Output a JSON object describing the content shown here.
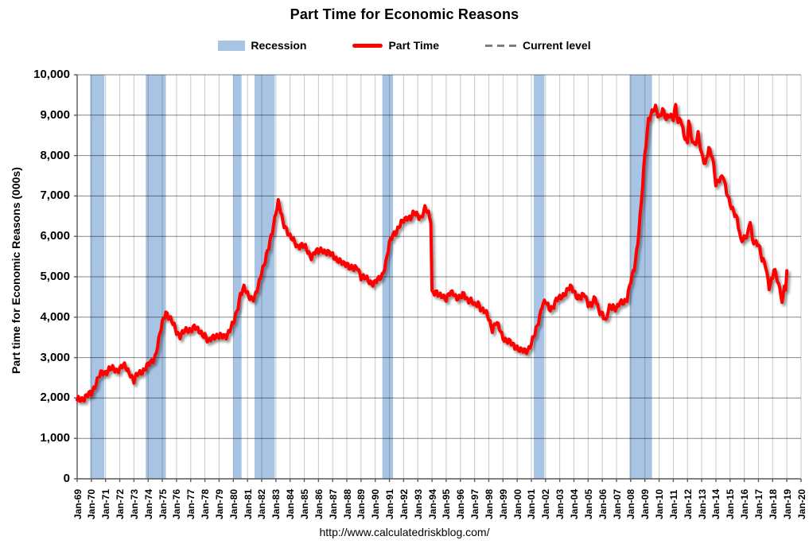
{
  "title": "Part Time for Economic Reasons",
  "footer_url": "http://www.calculatedriskblog.com/",
  "legend": [
    {
      "label": "Recession",
      "type": "band",
      "color": "#a8c4e4"
    },
    {
      "label": "Part Time",
      "type": "line",
      "color": "#ff0000"
    },
    {
      "label": "Current level",
      "type": "dashed",
      "color": "#7f7f7f"
    }
  ],
  "chart_data": {
    "type": "line",
    "title": "Part Time for Economic Reasons",
    "xlabel": "",
    "ylabel": "Part time for Economic Reasons (000s)",
    "x_domain": [
      1969,
      2020
    ],
    "ylim": [
      0,
      10000
    ],
    "grid": true,
    "legend_position": "top",
    "y_ticks": [
      0,
      1000,
      2000,
      3000,
      4000,
      5000,
      6000,
      7000,
      8000,
      9000,
      10000
    ],
    "y_tick_labels": [
      "0",
      "1,000",
      "2,000",
      "3,000",
      "4,000",
      "5,000",
      "6,000",
      "7,000",
      "8,000",
      "9,000",
      "10,000"
    ],
    "x_tick_labels": [
      "Jan-69",
      "Jan-70",
      "Jan-71",
      "Jan-72",
      "Jan-73",
      "Jan-74",
      "Jan-75",
      "Jan-76",
      "Jan-77",
      "Jan-78",
      "Jan-79",
      "Jan-80",
      "Jan-81",
      "Jan-82",
      "Jan-83",
      "Jan-84",
      "Jan-85",
      "Jan-86",
      "Jan-87",
      "Jan-88",
      "Jan-89",
      "Jan-90",
      "Jan-91",
      "Jan-92",
      "Jan-93",
      "Jan-94",
      "Jan-95",
      "Jan-96",
      "Jan-97",
      "Jan-98",
      "Jan-99",
      "Jan-00",
      "Jan-01",
      "Jan-02",
      "Jan-03",
      "Jan-04",
      "Jan-05",
      "Jan-06",
      "Jan-07",
      "Jan-08",
      "Jan-09",
      "Jan-10",
      "Jan-11",
      "Jan-12",
      "Jan-13",
      "Jan-14",
      "Jan-15",
      "Jan-16",
      "Jan-17",
      "Jan-18",
      "Jan-19",
      "Jan-20"
    ],
    "colors": {
      "recession_band": "#a8c4e4",
      "part_time_line": "#ff0000",
      "current_level_line": "#7f7f7f",
      "h_gridline": "#808080",
      "v_gridline": "#c6c6c6",
      "axis": "#595959"
    },
    "recessions": [
      [
        1969.917,
        1970.917
      ],
      [
        1973.833,
        1975.25
      ],
      [
        1980.0,
        1980.583
      ],
      [
        1981.5,
        1982.917
      ],
      [
        1990.5,
        1991.25
      ],
      [
        2001.167,
        2001.917
      ],
      [
        2007.917,
        2009.5
      ]
    ],
    "current_level": 5150,
    "current_level_span": [
      2005.0,
      2020.0
    ],
    "series": [
      {
        "name": "Part Time",
        "color": "#ff0000",
        "anchors": [
          [
            1969.0,
            1950
          ],
          [
            1969.25,
            1980
          ],
          [
            1969.5,
            2000
          ],
          [
            1969.75,
            2060
          ],
          [
            1970.0,
            2120
          ],
          [
            1970.25,
            2320
          ],
          [
            1970.5,
            2500
          ],
          [
            1970.75,
            2620
          ],
          [
            1971.0,
            2650
          ],
          [
            1971.25,
            2720
          ],
          [
            1971.5,
            2700
          ],
          [
            1971.75,
            2680
          ],
          [
            1972.0,
            2760
          ],
          [
            1972.25,
            2800
          ],
          [
            1972.5,
            2700
          ],
          [
            1972.75,
            2620
          ],
          [
            1973.0,
            2420
          ],
          [
            1973.25,
            2570
          ],
          [
            1973.5,
            2650
          ],
          [
            1973.75,
            2720
          ],
          [
            1974.0,
            2800
          ],
          [
            1974.25,
            2900
          ],
          [
            1974.5,
            3050
          ],
          [
            1974.75,
            3420
          ],
          [
            1975.0,
            3850
          ],
          [
            1975.25,
            4150
          ],
          [
            1975.5,
            3980
          ],
          [
            1975.75,
            3820
          ],
          [
            1976.0,
            3650
          ],
          [
            1976.25,
            3560
          ],
          [
            1976.5,
            3620
          ],
          [
            1976.75,
            3660
          ],
          [
            1977.0,
            3720
          ],
          [
            1977.25,
            3760
          ],
          [
            1977.5,
            3660
          ],
          [
            1977.75,
            3620
          ],
          [
            1978.0,
            3560
          ],
          [
            1978.25,
            3350
          ],
          [
            1978.5,
            3510
          ],
          [
            1978.75,
            3560
          ],
          [
            1979.0,
            3500
          ],
          [
            1979.25,
            3520
          ],
          [
            1979.5,
            3560
          ],
          [
            1979.75,
            3680
          ],
          [
            1980.0,
            3820
          ],
          [
            1980.25,
            4150
          ],
          [
            1980.5,
            4580
          ],
          [
            1980.75,
            4700
          ],
          [
            1981.0,
            4560
          ],
          [
            1981.25,
            4500
          ],
          [
            1981.5,
            4460
          ],
          [
            1981.75,
            4720
          ],
          [
            1982.0,
            5150
          ],
          [
            1982.25,
            5420
          ],
          [
            1982.5,
            5700
          ],
          [
            1982.75,
            6120
          ],
          [
            1983.0,
            6630
          ],
          [
            1983.17,
            6850
          ],
          [
            1983.33,
            6600
          ],
          [
            1983.5,
            6320
          ],
          [
            1983.75,
            6200
          ],
          [
            1984.0,
            6000
          ],
          [
            1984.25,
            5860
          ],
          [
            1984.5,
            5760
          ],
          [
            1984.75,
            5810
          ],
          [
            1985.0,
            5740
          ],
          [
            1985.25,
            5610
          ],
          [
            1985.5,
            5520
          ],
          [
            1985.75,
            5610
          ],
          [
            1986.0,
            5600
          ],
          [
            1986.25,
            5700
          ],
          [
            1986.5,
            5610
          ],
          [
            1986.75,
            5560
          ],
          [
            1987.0,
            5550
          ],
          [
            1987.25,
            5460
          ],
          [
            1987.5,
            5360
          ],
          [
            1987.75,
            5310
          ],
          [
            1988.0,
            5360
          ],
          [
            1988.25,
            5220
          ],
          [
            1988.5,
            5160
          ],
          [
            1988.75,
            5260
          ],
          [
            1989.0,
            5010
          ],
          [
            1989.25,
            4960
          ],
          [
            1989.5,
            4910
          ],
          [
            1989.75,
            4860
          ],
          [
            1990.0,
            4860
          ],
          [
            1990.25,
            4920
          ],
          [
            1990.5,
            5060
          ],
          [
            1990.75,
            5360
          ],
          [
            1991.0,
            5790
          ],
          [
            1991.25,
            6060
          ],
          [
            1991.5,
            6150
          ],
          [
            1991.75,
            6260
          ],
          [
            1992.0,
            6390
          ],
          [
            1992.25,
            6500
          ],
          [
            1992.5,
            6450
          ],
          [
            1992.75,
            6560
          ],
          [
            1993.0,
            6540
          ],
          [
            1993.25,
            6480
          ],
          [
            1993.5,
            6660
          ],
          [
            1993.75,
            6560
          ],
          [
            1993.92,
            6420
          ],
          [
            1994.0,
            4650
          ],
          [
            1994.25,
            4600
          ],
          [
            1994.5,
            4510
          ],
          [
            1994.75,
            4560
          ],
          [
            1995.0,
            4460
          ],
          [
            1995.25,
            4560
          ],
          [
            1995.5,
            4610
          ],
          [
            1995.75,
            4500
          ],
          [
            1996.0,
            4460
          ],
          [
            1996.25,
            4560
          ],
          [
            1996.5,
            4460
          ],
          [
            1996.75,
            4410
          ],
          [
            1997.0,
            4260
          ],
          [
            1997.25,
            4360
          ],
          [
            1997.5,
            4210
          ],
          [
            1997.75,
            4110
          ],
          [
            1998.0,
            3960
          ],
          [
            1998.25,
            3720
          ],
          [
            1998.5,
            3860
          ],
          [
            1998.75,
            3710
          ],
          [
            1999.0,
            3520
          ],
          [
            1999.25,
            3420
          ],
          [
            1999.5,
            3360
          ],
          [
            1999.75,
            3310
          ],
          [
            2000.0,
            3260
          ],
          [
            2000.25,
            3150
          ],
          [
            2000.5,
            3160
          ],
          [
            2000.75,
            3210
          ],
          [
            2001.0,
            3350
          ],
          [
            2001.25,
            3560
          ],
          [
            2001.5,
            3910
          ],
          [
            2001.75,
            4310
          ],
          [
            2002.0,
            4360
          ],
          [
            2002.25,
            4210
          ],
          [
            2002.5,
            4260
          ],
          [
            2002.75,
            4410
          ],
          [
            2003.0,
            4460
          ],
          [
            2003.25,
            4560
          ],
          [
            2003.5,
            4660
          ],
          [
            2003.75,
            4720
          ],
          [
            2004.0,
            4660
          ],
          [
            2004.25,
            4510
          ],
          [
            2004.5,
            4460
          ],
          [
            2004.75,
            4560
          ],
          [
            2005.0,
            4360
          ],
          [
            2005.25,
            4300
          ],
          [
            2005.5,
            4450
          ],
          [
            2005.75,
            4200
          ],
          [
            2006.0,
            4100
          ],
          [
            2006.25,
            3850
          ],
          [
            2006.42,
            4150
          ],
          [
            2006.5,
            4250
          ],
          [
            2006.75,
            4300
          ],
          [
            2007.0,
            4180
          ],
          [
            2007.25,
            4350
          ],
          [
            2007.5,
            4400
          ],
          [
            2007.75,
            4450
          ],
          [
            2008.0,
            4860
          ],
          [
            2008.25,
            5220
          ],
          [
            2008.5,
            5870
          ],
          [
            2008.75,
            6820
          ],
          [
            2009.0,
            8020
          ],
          [
            2009.25,
            8920
          ],
          [
            2009.5,
            9060
          ],
          [
            2009.75,
            9150
          ],
          [
            2010.0,
            8960
          ],
          [
            2010.25,
            9160
          ],
          [
            2010.5,
            8860
          ],
          [
            2010.75,
            9010
          ],
          [
            2011.0,
            8960
          ],
          [
            2011.17,
            9240
          ],
          [
            2011.33,
            8760
          ],
          [
            2011.5,
            8910
          ],
          [
            2011.75,
            8560
          ],
          [
            2012.0,
            8320
          ],
          [
            2012.08,
            8900
          ],
          [
            2012.25,
            8420
          ],
          [
            2012.5,
            8260
          ],
          [
            2012.75,
            8560
          ],
          [
            2013.0,
            7980
          ],
          [
            2013.25,
            7760
          ],
          [
            2013.5,
            8230
          ],
          [
            2013.75,
            7960
          ],
          [
            2014.0,
            7260
          ],
          [
            2014.25,
            7440
          ],
          [
            2014.5,
            7530
          ],
          [
            2014.75,
            7060
          ],
          [
            2015.0,
            6810
          ],
          [
            2015.25,
            6660
          ],
          [
            2015.5,
            6400
          ],
          [
            2015.75,
            5880
          ],
          [
            2016.0,
            5990
          ],
          [
            2016.25,
            6060
          ],
          [
            2016.42,
            6370
          ],
          [
            2016.58,
            5850
          ],
          [
            2016.75,
            5890
          ],
          [
            2017.0,
            5840
          ],
          [
            2017.25,
            5400
          ],
          [
            2017.5,
            5280
          ],
          [
            2017.75,
            4780
          ],
          [
            2018.0,
            4990
          ],
          [
            2018.08,
            5160
          ],
          [
            2018.25,
            5000
          ],
          [
            2018.5,
            4740
          ],
          [
            2018.67,
            4360
          ],
          [
            2018.83,
            4790
          ],
          [
            2018.92,
            4660
          ],
          [
            2019.0,
            5150
          ]
        ]
      }
    ]
  }
}
